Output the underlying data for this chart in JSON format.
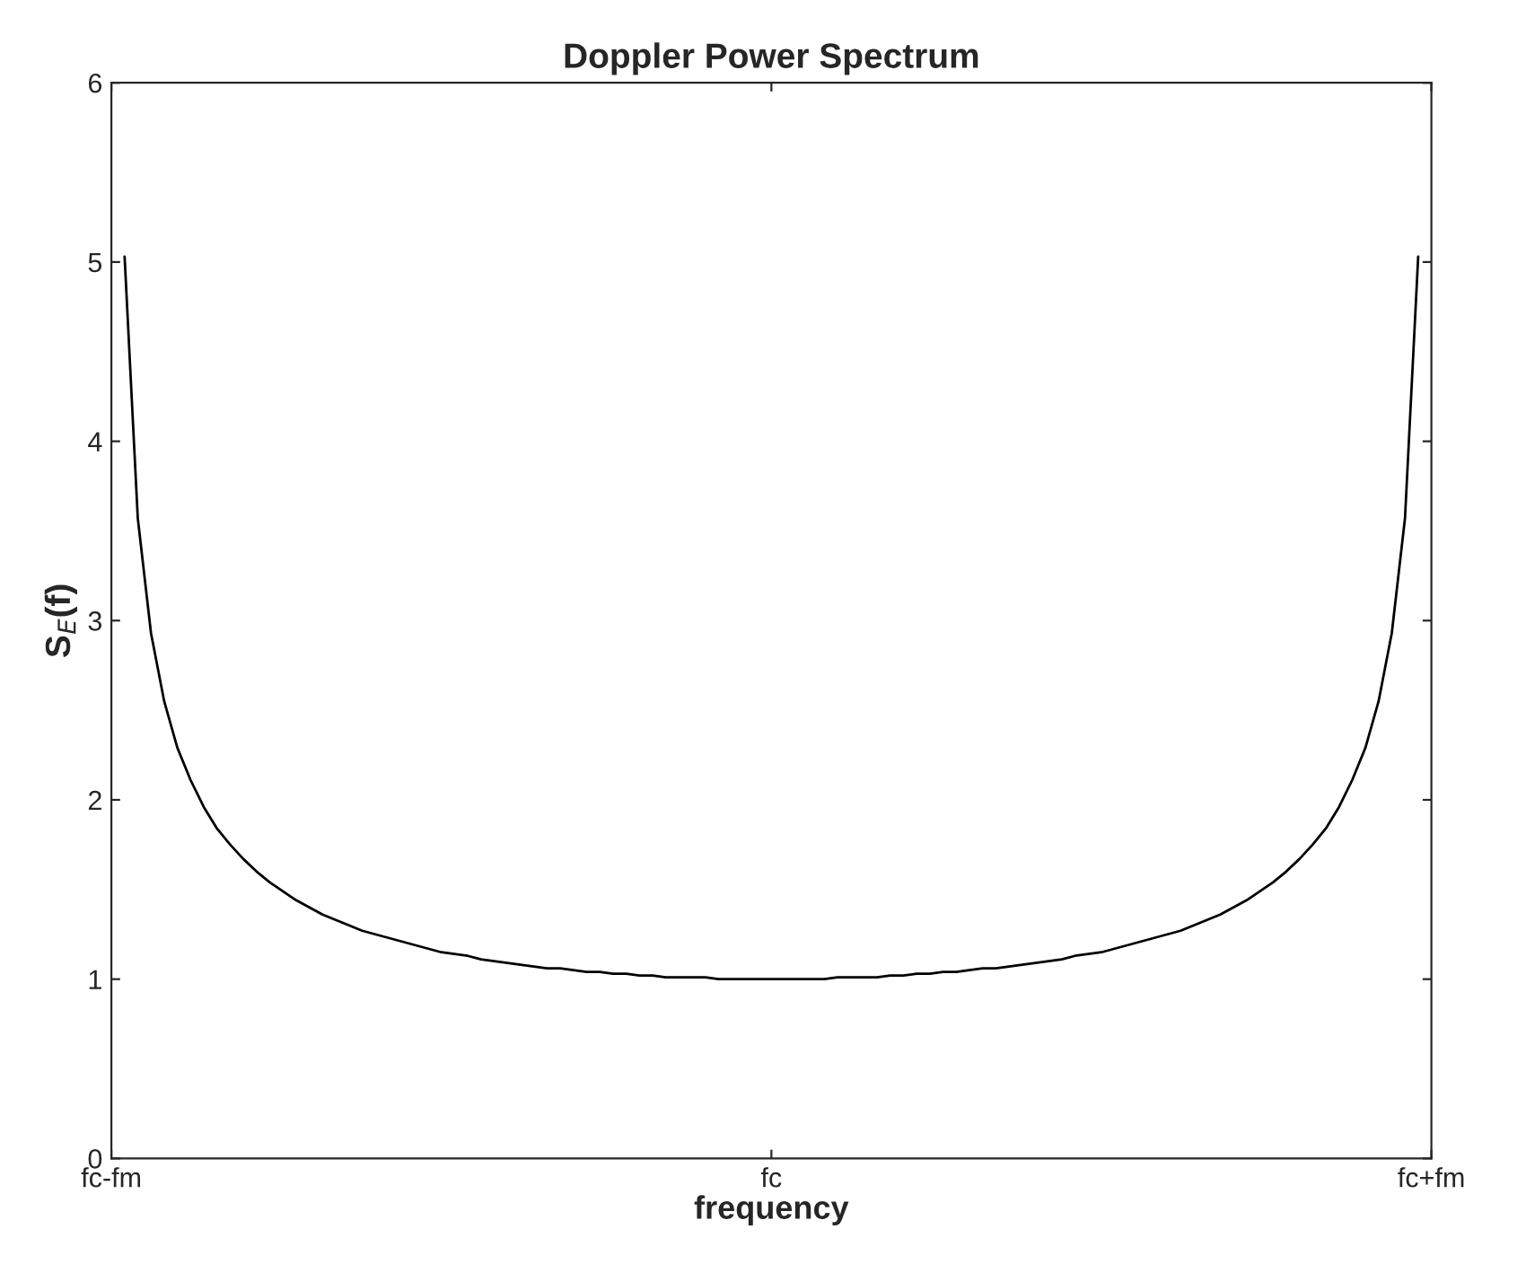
{
  "chart_data": {
    "type": "line",
    "title": "Doppler Power Spectrum",
    "xlabel": "frequency",
    "ylabel": "S$_{E}$(f)",
    "categories": [
      "fc-fm",
      null,
      null,
      null,
      null,
      null,
      null,
      null,
      null,
      null,
      null,
      null,
      null,
      null,
      null,
      null,
      null,
      null,
      null,
      null,
      null,
      null,
      null,
      null,
      null,
      null,
      null,
      null,
      null,
      null,
      null,
      null,
      null,
      null,
      null,
      null,
      null,
      null,
      null,
      null,
      null,
      null,
      null,
      null,
      null,
      null,
      null,
      null,
      null,
      null,
      "fc",
      null,
      null,
      null,
      null,
      null,
      null,
      null,
      null,
      null,
      null,
      null,
      null,
      null,
      null,
      null,
      null,
      null,
      null,
      null,
      null,
      null,
      null,
      null,
      null,
      null,
      null,
      null,
      null,
      null,
      null,
      null,
      null,
      null,
      null,
      null,
      null,
      null,
      null,
      null,
      null,
      null,
      null,
      null,
      null,
      null,
      null,
      null,
      null,
      null,
      "fc+fm"
    ],
    "series": [
      {
        "color": "#000000",
        "values": [
          null,
          5.03,
          3.57,
          2.93,
          2.55,
          2.29,
          2.11,
          1.96,
          1.84,
          1.75,
          1.67,
          1.6,
          1.54,
          1.49,
          1.44,
          1.4,
          1.36,
          1.33,
          1.3,
          1.27,
          1.25,
          1.23,
          1.21,
          1.19,
          1.17,
          1.15,
          1.14,
          1.13,
          1.11,
          1.1,
          1.09,
          1.08,
          1.07,
          1.06,
          1.06,
          1.05,
          1.04,
          1.04,
          1.03,
          1.03,
          1.02,
          1.02,
          1.01,
          1.01,
          1.01,
          1.01,
          1.0,
          1.0,
          1.0,
          1.0,
          1.0,
          1.0,
          1.0,
          1.0,
          1.0,
          1.01,
          1.01,
          1.01,
          1.01,
          1.02,
          1.02,
          1.03,
          1.03,
          1.04,
          1.04,
          1.05,
          1.06,
          1.06,
          1.07,
          1.08,
          1.09,
          1.1,
          1.11,
          1.13,
          1.14,
          1.15,
          1.17,
          1.19,
          1.21,
          1.23,
          1.25,
          1.27,
          1.3,
          1.33,
          1.36,
          1.4,
          1.44,
          1.49,
          1.54,
          1.6,
          1.67,
          1.75,
          1.84,
          1.96,
          2.11,
          2.29,
          2.55,
          2.93,
          3.57,
          5.03,
          null
        ]
      }
    ],
    "ylim": [
      0,
      6
    ],
    "yticks": [
      0,
      1,
      2,
      3,
      4,
      5,
      6
    ],
    "grid": false,
    "legend": false,
    "marker": "none",
    "line_style": "solid"
  }
}
